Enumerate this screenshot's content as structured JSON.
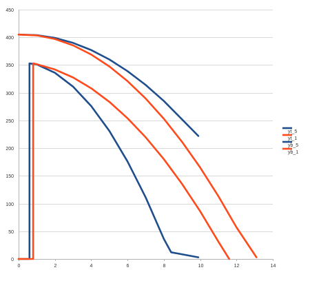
{
  "chart_data": {
    "type": "line",
    "title": "",
    "xlabel": "",
    "ylabel": "",
    "xlim": [
      0,
      14
    ],
    "ylim": [
      0,
      450
    ],
    "x_ticks": [
      0,
      2,
      4,
      6,
      8,
      10,
      12,
      14
    ],
    "y_ticks": [
      0,
      50,
      100,
      150,
      200,
      250,
      300,
      350,
      400,
      450
    ],
    "grid": "horizontal",
    "legend_position": "right",
    "series": [
      {
        "name": "yt_5",
        "color": "#1f4e8c",
        "points": [
          [
            0,
            0
          ],
          [
            0.6,
            0
          ],
          [
            0.6,
            353
          ],
          [
            1,
            351
          ],
          [
            2,
            336
          ],
          [
            3,
            311
          ],
          [
            4,
            276
          ],
          [
            5,
            231
          ],
          [
            6,
            176
          ],
          [
            7,
            111
          ],
          [
            8,
            36
          ],
          [
            8.4,
            12
          ],
          [
            9.9,
            3
          ]
        ]
      },
      {
        "name": "yt_1",
        "color": "#ff4a1c",
        "points": [
          [
            0,
            0
          ],
          [
            0.8,
            0
          ],
          [
            0.8,
            353
          ],
          [
            1,
            351.6
          ],
          [
            2,
            342
          ],
          [
            3,
            327.5
          ],
          [
            4,
            308
          ],
          [
            5,
            283.5
          ],
          [
            6,
            254
          ],
          [
            7,
            219.5
          ],
          [
            8,
            180
          ],
          [
            9,
            135.5
          ],
          [
            10,
            86
          ],
          [
            11,
            31.5
          ],
          [
            11.6,
            -3
          ]
        ]
      },
      {
        "name": "yb_5",
        "color": "#1f4e8c",
        "points": [
          [
            0,
            405
          ],
          [
            1,
            404
          ],
          [
            2,
            399
          ],
          [
            3,
            390
          ],
          [
            4,
            377
          ],
          [
            5,
            360
          ],
          [
            6,
            339
          ],
          [
            7,
            314
          ],
          [
            8,
            285
          ],
          [
            9,
            252
          ],
          [
            9.9,
            222
          ]
        ]
      },
      {
        "name": "yb_1",
        "color": "#ff4a1c",
        "points": [
          [
            0,
            405
          ],
          [
            1,
            403.5
          ],
          [
            2,
            397
          ],
          [
            3,
            385.5
          ],
          [
            4,
            369
          ],
          [
            5,
            347.5
          ],
          [
            6,
            321
          ],
          [
            7,
            289.5
          ],
          [
            8,
            253
          ],
          [
            9,
            211.5
          ],
          [
            10,
            165
          ],
          [
            11,
            113.5
          ],
          [
            12,
            57
          ],
          [
            13.1,
            3
          ]
        ]
      }
    ]
  }
}
